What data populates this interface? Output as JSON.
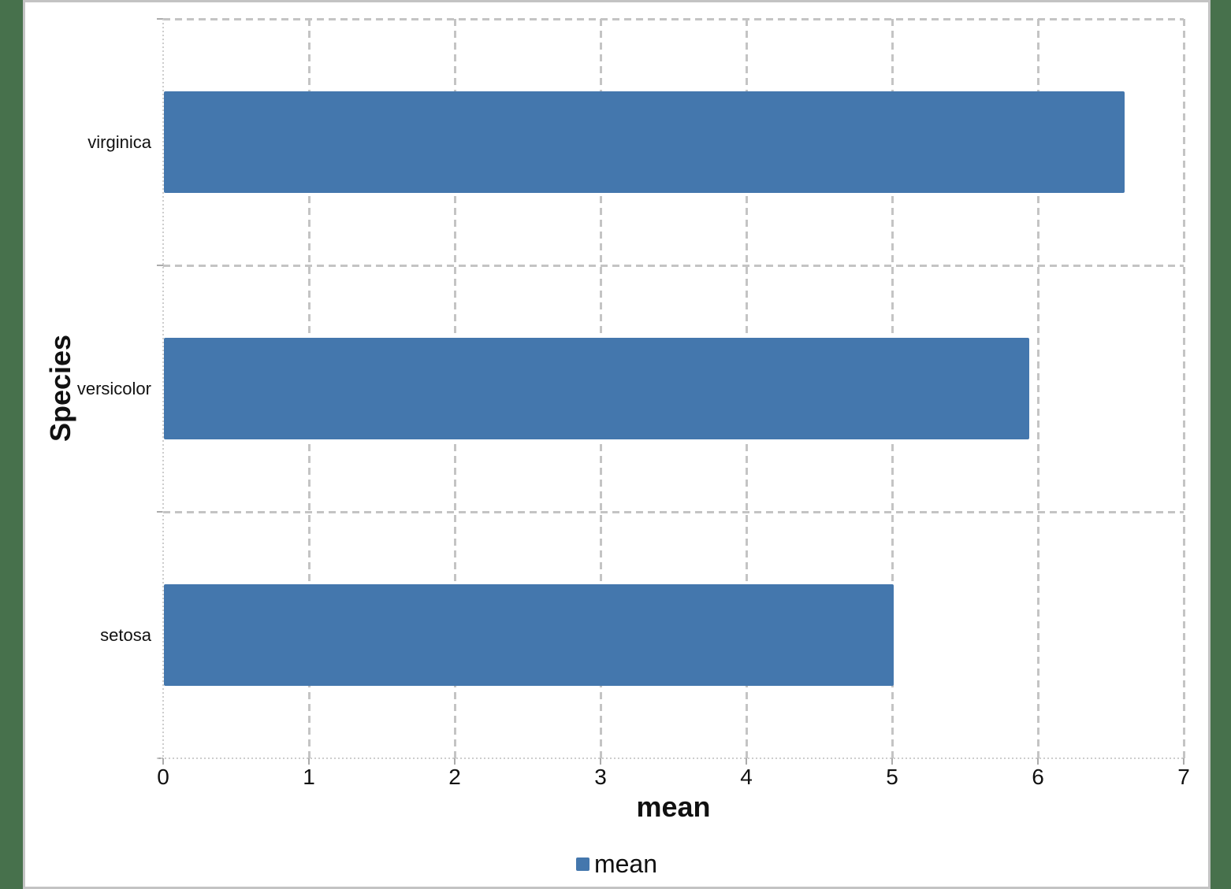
{
  "colors": {
    "bar": "#4477AD",
    "background": "#47714C",
    "card_border": "#C3C3C3",
    "gridline": "#C4C4C4",
    "axis_line": "#CDCDCD",
    "tick": "#ABABAB",
    "text": "#111111"
  },
  "chart_data": {
    "type": "bar",
    "orientation": "horizontal",
    "title": "",
    "categories": [
      "setosa",
      "versicolor",
      "virginica"
    ],
    "series": [
      {
        "name": "mean",
        "color": "#4477AD",
        "values": [
          5.006,
          5.936,
          6.588
        ]
      }
    ],
    "xlabel": "mean",
    "ylabel": "Species",
    "xlim": [
      0,
      7
    ],
    "x_ticks": [
      "0",
      "1",
      "2",
      "3",
      "4",
      "5",
      "6",
      "7"
    ],
    "grid": true,
    "grid_style": "dashed",
    "legend": {
      "position": "bottom",
      "entries": [
        "mean"
      ]
    }
  }
}
